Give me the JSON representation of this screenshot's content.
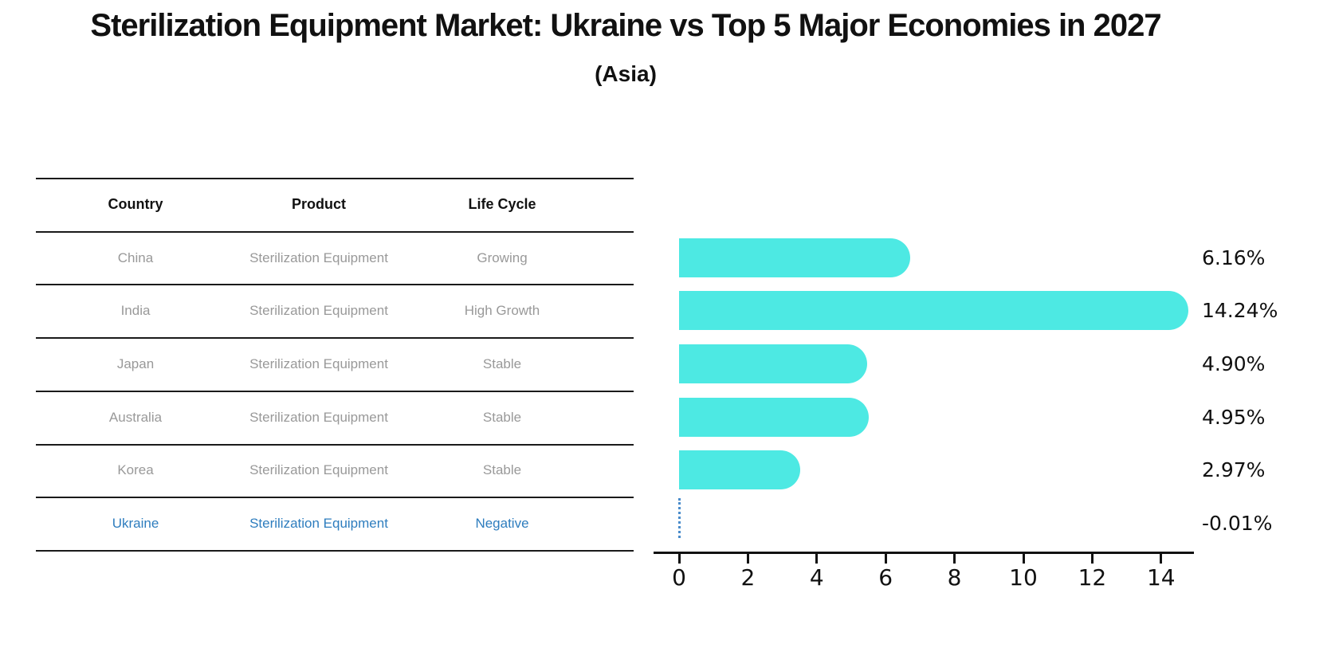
{
  "title": "Sterilization Equipment Market: Ukraine vs Top 5 Major Economies in 2027",
  "subtitle": "(Asia)",
  "table": {
    "headers": [
      "Country",
      "Product",
      "Life Cycle"
    ],
    "rows": [
      {
        "country": "China",
        "product": "Sterilization Equipment",
        "life_cycle": "Growing",
        "highlight": false
      },
      {
        "country": "India",
        "product": "Sterilization Equipment",
        "life_cycle": "High Growth",
        "highlight": false
      },
      {
        "country": "Japan",
        "product": "Sterilization Equipment",
        "life_cycle": "Stable",
        "highlight": false
      },
      {
        "country": "Australia",
        "product": "Sterilization Equipment",
        "life_cycle": "Stable",
        "highlight": false
      },
      {
        "country": "Korea",
        "product": "Sterilization Equipment",
        "life_cycle": "Stable",
        "highlight": false
      },
      {
        "country": "Ukraine",
        "product": "Sterilization Equipment",
        "life_cycle": "Negative",
        "highlight": true
      }
    ]
  },
  "chart_data": {
    "type": "bar",
    "orientation": "horizontal",
    "title": "Sterilization Equipment Market: Ukraine vs Top 5 Major Economies in 2027 (Asia)",
    "categories": [
      "China",
      "India",
      "Japan",
      "Australia",
      "Korea",
      "Ukraine"
    ],
    "values": [
      6.16,
      14.24,
      4.9,
      4.95,
      2.97,
      -0.01
    ],
    "value_labels": [
      "6.16%",
      "14.24%",
      "4.90%",
      "4.95%",
      "2.97%",
      "-0.01%"
    ],
    "x_ticks": [
      0,
      2,
      4,
      6,
      8,
      10,
      12,
      14
    ],
    "xlim": [
      -0.75,
      15
    ],
    "xlabel": "",
    "ylabel": "",
    "grid": false,
    "legend": false
  },
  "colors": {
    "bar": "#4DE9E3",
    "highlight_text": "#2E7DBE",
    "negative_marker": "#4A8CCB",
    "table_text": "#999999",
    "heading_text": "#111111",
    "axis": "#111111"
  }
}
